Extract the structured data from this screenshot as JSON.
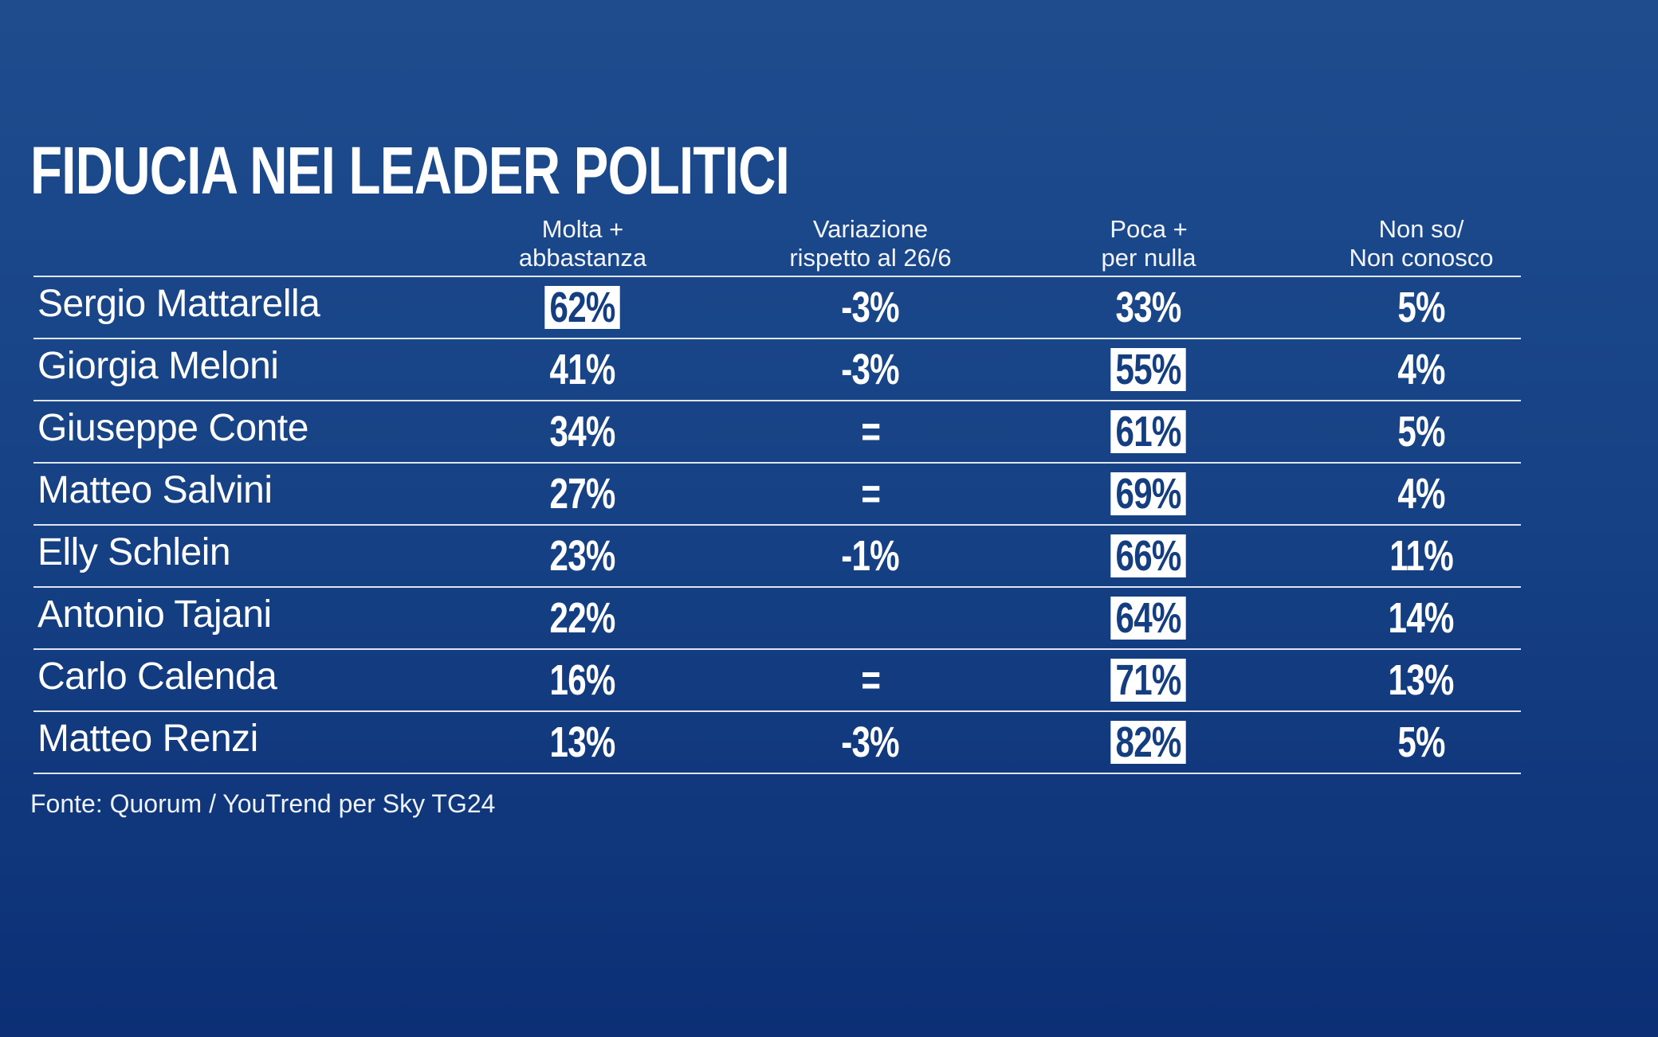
{
  "title": "FIDUCIA NEI LEADER POLITICI",
  "source": "Fonte: Quorum / YouTrend per Sky TG24",
  "colors": {
    "background": "#174386",
    "highlight_bg": "#ffffff",
    "highlight_text": "#143e80",
    "text": "#ffffff"
  },
  "chart_data": {
    "type": "table",
    "title": "FIDUCIA NEI LEADER POLITICI",
    "columns": [
      {
        "line1": "Molta +",
        "line2": "abbastanza"
      },
      {
        "line1": "Variazione",
        "line2": "rispetto al 26/6"
      },
      {
        "line1": "Poca +",
        "line2": "per nulla"
      },
      {
        "line1": "Non so/",
        "line2": "Non conosco"
      }
    ],
    "rows": [
      {
        "name": "Sergio Mattarella",
        "molta": "62%",
        "variazione": "-3%",
        "poca": "33%",
        "nonso": "5%",
        "highlight": "molta"
      },
      {
        "name": "Giorgia Meloni",
        "molta": "41%",
        "variazione": "-3%",
        "poca": "55%",
        "nonso": "4%",
        "highlight": "poca"
      },
      {
        "name": "Giuseppe Conte",
        "molta": "34%",
        "variazione": "=",
        "poca": "61%",
        "nonso": "5%",
        "highlight": "poca"
      },
      {
        "name": "Matteo Salvini",
        "molta": "27%",
        "variazione": "=",
        "poca": "69%",
        "nonso": "4%",
        "highlight": "poca"
      },
      {
        "name": "Elly Schlein",
        "molta": "23%",
        "variazione": "-1%",
        "poca": "66%",
        "nonso": "11%",
        "highlight": "poca"
      },
      {
        "name": "Antonio Tajani",
        "molta": "22%",
        "variazione": "",
        "poca": "64%",
        "nonso": "14%",
        "highlight": "poca"
      },
      {
        "name": "Carlo Calenda",
        "molta": "16%",
        "variazione": "=",
        "poca": "71%",
        "nonso": "13%",
        "highlight": "poca"
      },
      {
        "name": "Matteo Renzi",
        "molta": "13%",
        "variazione": "-3%",
        "poca": "82%",
        "nonso": "5%",
        "highlight": "poca"
      }
    ]
  }
}
